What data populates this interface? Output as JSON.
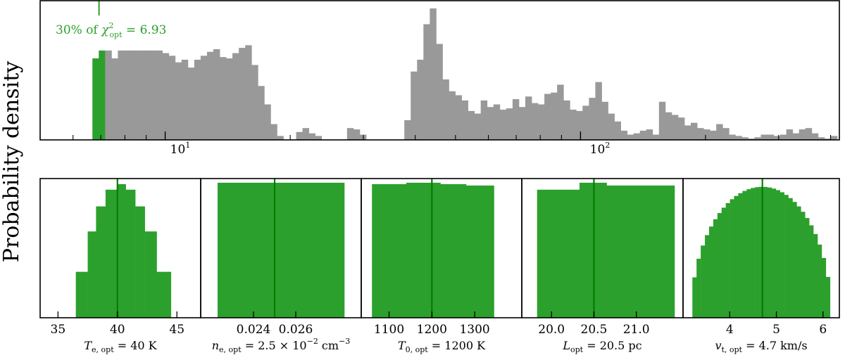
{
  "figure": {
    "ylabel": "Probability density"
  },
  "colors": {
    "accepted": "#2ca02c",
    "rejected": "#999999",
    "marker": "#007f00",
    "axes": "#000000"
  },
  "chart_data": [
    {
      "type": "bar",
      "panel": "top",
      "xscale": "log",
      "xlim": [
        5.0,
        420.0
      ],
      "xticks_major": [
        10,
        100
      ],
      "xtick_labels": [
        "10^1",
        "10^2"
      ],
      "threshold_value": 6.93,
      "annotation": "30% of χ²_opt = 6.93",
      "bin_values": [
        0,
        0,
        0,
        0,
        0,
        62,
        68,
        68,
        62,
        68,
        68,
        68,
        68,
        68,
        68,
        68,
        66,
        64,
        59,
        61,
        55,
        61,
        64,
        67,
        69,
        63,
        62,
        66,
        70,
        72,
        57,
        41,
        27,
        12,
        3,
        0,
        0,
        6,
        9,
        5,
        3,
        0,
        0,
        0,
        0,
        9,
        8,
        4,
        0,
        0,
        0,
        0,
        0,
        0,
        15,
        52,
        61,
        88,
        100,
        73,
        46,
        37,
        34,
        30,
        22,
        20,
        30,
        25,
        27,
        23,
        24,
        31,
        25,
        33,
        28,
        27,
        35,
        36,
        42,
        30,
        23,
        22,
        26,
        32,
        44,
        29,
        20,
        14,
        7,
        4,
        5,
        7,
        8,
        4,
        29,
        21,
        19,
        17,
        11,
        13,
        9,
        8,
        7,
        12,
        9,
        4,
        3,
        2,
        1,
        2,
        4,
        4,
        3,
        4,
        8,
        5,
        8,
        9,
        5,
        2,
        1,
        3
      ],
      "bin_range": [
        5.6,
        415.0
      ],
      "green_bins_until": 6.93
    },
    {
      "type": "histogram",
      "panel": "Te",
      "xlim": [
        33.5,
        47.0
      ],
      "xticks": [
        35,
        40,
        45
      ],
      "xlabel": "T_e,opt = 40 K",
      "opt": 40,
      "bins": [
        [
          36.5,
          37.5,
          0.33
        ],
        [
          37.5,
          38.2,
          0.62
        ],
        [
          38.2,
          39.0,
          0.8
        ],
        [
          39.0,
          40.0,
          0.92
        ],
        [
          40.0,
          40.7,
          0.96
        ],
        [
          40.7,
          41.5,
          0.92
        ],
        [
          41.5,
          42.3,
          0.8
        ],
        [
          42.3,
          43.3,
          0.62
        ],
        [
          43.3,
          44.5,
          0.33
        ]
      ]
    },
    {
      "type": "histogram",
      "panel": "ne",
      "xlim": [
        0.0215,
        0.0291
      ],
      "xticks": [
        0.024,
        0.026
      ],
      "xlabel": "n_e,opt = 2.5 × 10^-2 cm^-3",
      "opt": 0.025,
      "bins": [
        [
          0.0223,
          0.0283,
          0.97
        ]
      ]
    },
    {
      "type": "histogram",
      "panel": "T0",
      "xlim": [
        1035,
        1410
      ],
      "xticks": [
        1100,
        1200,
        1300
      ],
      "xlabel": "T_0,opt = 1200 K",
      "opt": 1200,
      "bins": [
        [
          1060,
          1140,
          0.96
        ],
        [
          1140,
          1220,
          0.97
        ],
        [
          1220,
          1280,
          0.96
        ],
        [
          1280,
          1345,
          0.95
        ]
      ]
    },
    {
      "type": "histogram",
      "panel": "L",
      "xlim": [
        19.65,
        21.55
      ],
      "xticks": [
        20.0,
        20.5,
        21.0
      ],
      "xlabel": "L_opt = 20.5 pc",
      "opt": 20.5,
      "bins": [
        [
          19.83,
          20.33,
          0.92
        ],
        [
          20.33,
          20.65,
          0.97
        ],
        [
          20.65,
          21.45,
          0.95
        ]
      ]
    },
    {
      "type": "histogram",
      "panel": "vt",
      "xlim": [
        3.0,
        6.35
      ],
      "xticks": [
        4,
        5,
        6
      ],
      "xlabel": "v_t,opt = 4.7 km/s",
      "opt": 4.7,
      "shape": "dome",
      "range": [
        3.2,
        6.15
      ],
      "nbins": 33,
      "peak": 0.96
    }
  ]
}
